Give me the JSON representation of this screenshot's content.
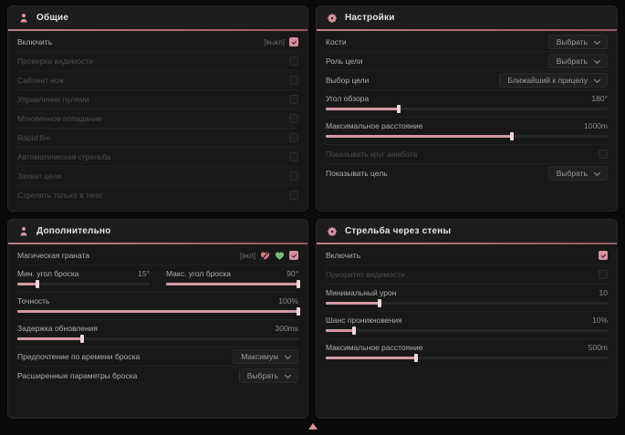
{
  "theme": {
    "accent_pink": "#d8929c",
    "slider_fill": "#d39aa3",
    "header_underline": "#b06b76",
    "panel_bg": "#181818",
    "page_bg": "#0a0a0a"
  },
  "footer": {
    "indicator": "up-arrow-icon"
  },
  "panels": [
    {
      "id": "general",
      "title": "Общие",
      "icon": "person-icon",
      "rows": [
        {
          "type": "toggle",
          "label": "Включить",
          "state_text": "[выкл]",
          "checked": true,
          "disabled": false
        },
        {
          "type": "toggle",
          "label": "Проверка видимости",
          "checked": false,
          "disabled": true
        },
        {
          "type": "toggle",
          "label": "Сайлент нож",
          "checked": false,
          "disabled": true
        },
        {
          "type": "toggle",
          "label": "Управление пулями",
          "checked": false,
          "disabled": true
        },
        {
          "type": "toggle",
          "label": "Мгновенное попадание",
          "checked": false,
          "disabled": true
        },
        {
          "type": "toggle",
          "label": "Rapid fire",
          "checked": false,
          "disabled": true
        },
        {
          "type": "toggle",
          "label": "Автоматическая стрельба",
          "checked": false,
          "disabled": true
        },
        {
          "type": "toggle",
          "label": "Захват цели",
          "checked": false,
          "disabled": true
        },
        {
          "type": "toggle",
          "label": "Стрелять только в тело",
          "checked": false,
          "disabled": true
        }
      ]
    },
    {
      "id": "settings",
      "title": "Настройки",
      "icon": "gear-flower-icon",
      "rows": [
        {
          "type": "dropdown",
          "label": "Кости",
          "value": "Выбрать"
        },
        {
          "type": "dropdown",
          "label": "Роль цели",
          "value": "Выбрать"
        },
        {
          "type": "dropdown",
          "label": "Выбор цели",
          "value": "Ближайший к прицелу"
        },
        {
          "type": "slider",
          "label": "Угол обзора",
          "value": "180°",
          "fill": 26
        },
        {
          "type": "slider",
          "label": "Максимальное расстояние",
          "value": "1000m",
          "fill": 66
        },
        {
          "type": "toggle",
          "label": "Показывать круг аимбота",
          "checked": false,
          "disabled": true
        },
        {
          "type": "dropdown",
          "label": "Показывать цель",
          "value": "Выбрать"
        }
      ]
    },
    {
      "id": "additional",
      "title": "Дополнительно",
      "icon": "person-icon",
      "rows": [
        {
          "type": "toggle",
          "label": "Магическая граната",
          "state_text": "[вкл]",
          "checked": true,
          "disabled": false,
          "icons": [
            "broken-heart-icon",
            "heart-icon"
          ]
        },
        {
          "type": "slider-pair",
          "sliders": [
            {
              "label": "Мин. угол броска",
              "value": "15°",
              "fill": 15
            },
            {
              "label": "Макс. угол броска",
              "value": "90°",
              "fill": 100
            }
          ]
        },
        {
          "type": "slider",
          "label": "Точность",
          "value": "100%",
          "fill": 100
        },
        {
          "type": "slider",
          "label": "Задержка обновления",
          "value": "300ms",
          "fill": 23
        },
        {
          "type": "dropdown",
          "label": "Предпочтение по времени броска",
          "value": "Максимум"
        },
        {
          "type": "dropdown",
          "label": "Расширенные параметры броска",
          "value": "Выбрать"
        }
      ]
    },
    {
      "id": "wallbang",
      "title": "Стрельба через стены",
      "icon": "gear-flower-icon",
      "rows": [
        {
          "type": "toggle",
          "label": "Включить",
          "checked": true,
          "disabled": false
        },
        {
          "type": "toggle",
          "label": "Приоритет видимости",
          "checked": false,
          "disabled": true
        },
        {
          "type": "slider",
          "label": "Минимальный урон",
          "value": "10",
          "fill": 19
        },
        {
          "type": "slider",
          "label": "Шанс проникновения",
          "value": "10%",
          "fill": 10
        },
        {
          "type": "slider",
          "label": "Максимальное расстояние",
          "value": "500m",
          "fill": 32
        }
      ]
    }
  ]
}
